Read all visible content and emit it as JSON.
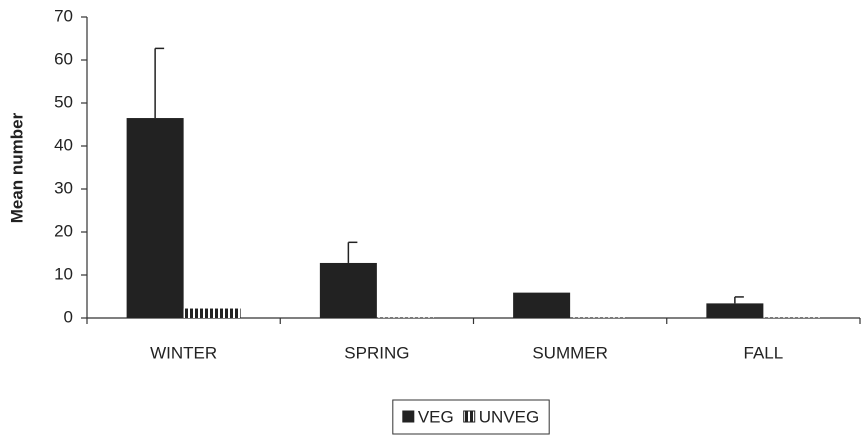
{
  "chart_data": {
    "type": "bar",
    "y_label": "Mean number",
    "categories": [
      "WINTER",
      "SPRING",
      "SUMMER",
      "FALL"
    ],
    "series": [
      {
        "name": "VEG",
        "color": "#222222",
        "values": [
          46.5,
          12.8,
          5.9,
          3.4
        ],
        "errors": [
          16.2,
          4.8,
          null,
          1.5
        ]
      },
      {
        "name": "UNVEG",
        "color": "#222222",
        "hatch": "vertical",
        "values": [
          2.2,
          0.1,
          0.1,
          0.1
        ]
      }
    ],
    "ylim": [
      0,
      70
    ],
    "yticks": [
      0,
      10,
      20,
      30,
      40,
      50,
      60,
      70
    ],
    "grid": false,
    "legend": "bottom"
  }
}
